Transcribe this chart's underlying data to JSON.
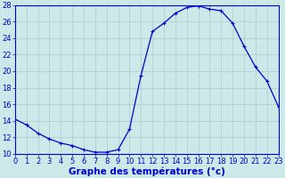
{
  "hours": [
    0,
    1,
    2,
    3,
    4,
    5,
    6,
    7,
    8,
    9,
    10,
    11,
    12,
    13,
    14,
    15,
    16,
    17,
    18,
    19,
    20,
    21,
    22,
    23
  ],
  "temps": [
    14.2,
    13.5,
    12.5,
    11.8,
    11.3,
    11.0,
    10.5,
    10.2,
    10.2,
    10.5,
    13.0,
    19.5,
    24.8,
    25.8,
    27.0,
    27.7,
    27.9,
    27.5,
    27.3,
    25.8,
    23.0,
    20.5,
    18.8,
    15.7
  ],
  "line_color": "#0000cc",
  "marker": "+",
  "marker_size": 3.5,
  "bg_color": "#cce8e8",
  "grid_color": "#aacccc",
  "xlabel": "Graphe des températures (°c)",
  "ylim": [
    10,
    28
  ],
  "yticks": [
    10,
    12,
    14,
    16,
    18,
    20,
    22,
    24,
    26,
    28
  ],
  "xlim": [
    0,
    23
  ],
  "xticks": [
    0,
    1,
    2,
    3,
    4,
    5,
    6,
    7,
    8,
    9,
    10,
    11,
    12,
    13,
    14,
    15,
    16,
    17,
    18,
    19,
    20,
    21,
    22,
    23
  ],
  "xtick_labels": [
    "0",
    "1",
    "2",
    "3",
    "4",
    "5",
    "6",
    "7",
    "8",
    "9",
    "10",
    "11",
    "12",
    "13",
    "14",
    "15",
    "16",
    "17",
    "18",
    "19",
    "20",
    "21",
    "22",
    "23"
  ],
  "axis_color": "#0000cc",
  "tick_label_color": "#0000cc",
  "xlabel_color": "#0000cc",
  "xlabel_fontsize": 7.5,
  "tick_fontsize": 6.0,
  "ytick_label_color": "#0000cc",
  "linewidth": 0.9
}
